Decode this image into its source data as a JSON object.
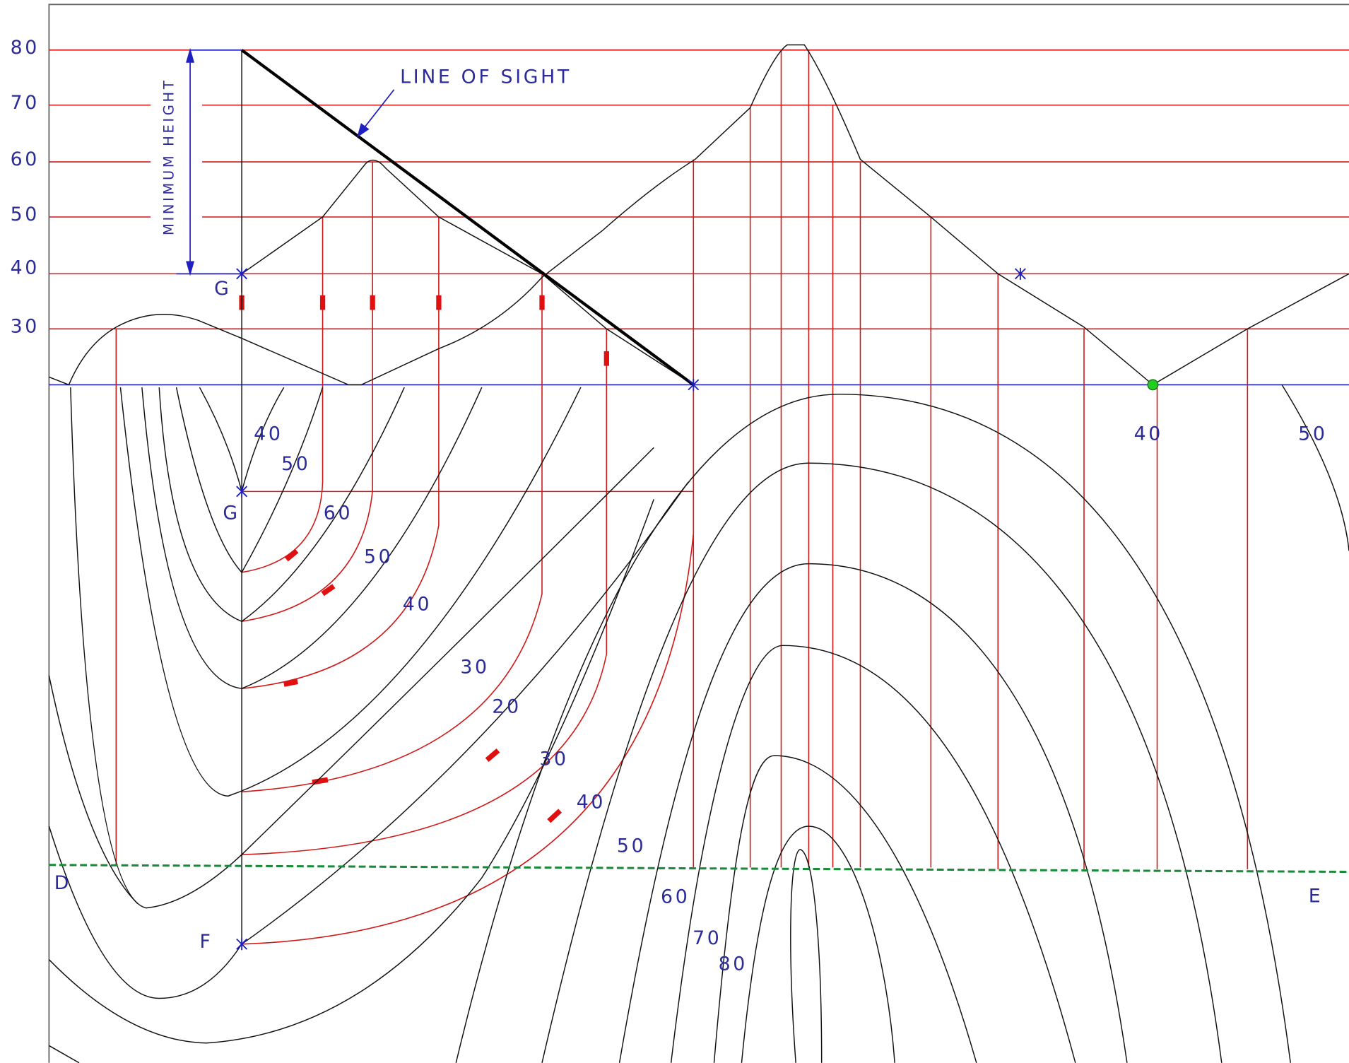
{
  "scale_labels": [
    80,
    70,
    60,
    50,
    40,
    30
  ],
  "annotations": {
    "line_of_sight": "LINE OF SIGHT",
    "minimum_height": "MINIMUM HEIGHT"
  },
  "points": {
    "g_upper": "G",
    "g_lower": "G",
    "f": "F",
    "d": "D",
    "e": "E"
  },
  "contour_labels": [
    40,
    50,
    60,
    50,
    40,
    30,
    20,
    30,
    40,
    50,
    60,
    70,
    80,
    40,
    50
  ]
}
